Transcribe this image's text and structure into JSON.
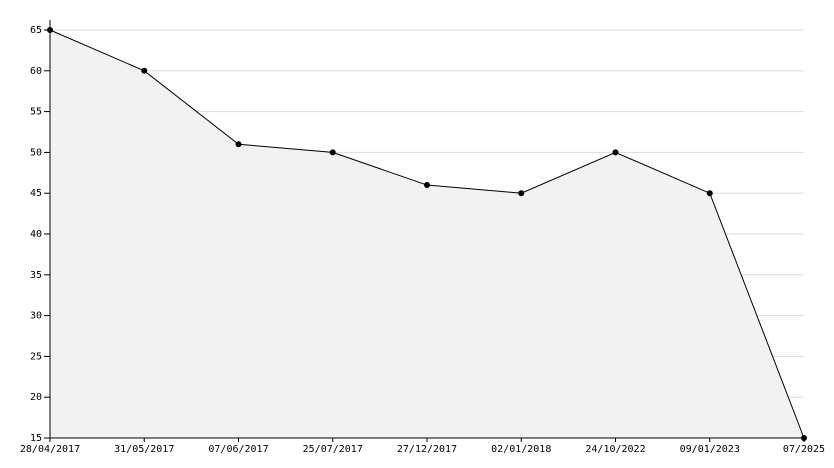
{
  "chart_data": {
    "type": "area-line",
    "categories": [
      "28/04/2017",
      "31/05/2017",
      "07/06/2017",
      "25/07/2017",
      "27/12/2017",
      "02/01/2018",
      "24/10/2022",
      "09/01/2023",
      "07/2025"
    ],
    "values": [
      65,
      60,
      51,
      50,
      46,
      45,
      50,
      45,
      15
    ],
    "color": "#000000",
    "area_color": "#f2f2f2",
    "ylim": [
      15,
      65
    ],
    "yticks": [
      15,
      20,
      25,
      30,
      35,
      40,
      45,
      50,
      55,
      60,
      65
    ],
    "grid": true
  }
}
